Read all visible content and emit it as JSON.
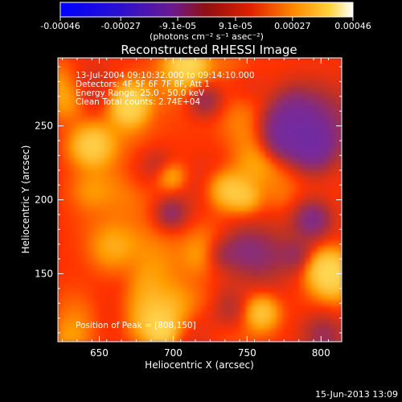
{
  "colorbar": {
    "ticks": [
      "-0.00046",
      "-0.00027",
      "-9.1e-05",
      "9.1e-05",
      "0.00027",
      "0.00046"
    ],
    "tick_values": [
      -0.00046,
      -0.00027,
      -9.1e-05,
      9.1e-05,
      0.00027,
      0.00046
    ],
    "range": [
      -0.00046,
      0.00046
    ],
    "units": "(photons cm⁻² s⁻¹ asec⁻²)"
  },
  "chart_data": {
    "type": "heatmap",
    "title": "Reconstructed RHESSI Image",
    "xlabel": "Heliocentric X (arcsec)",
    "ylabel": "Heliocentric Y (arcsec)",
    "xlim": [
      622,
      814
    ],
    "ylim": [
      104,
      296
    ],
    "xticks": [
      650,
      700,
      750,
      800
    ],
    "yticks": [
      150,
      200,
      250
    ],
    "colormap": [
      "#1a00ff",
      "#6a2ab0",
      "#b03030",
      "#ff3000",
      "#ff9a00",
      "#ffe060",
      "#ffffe0"
    ],
    "annotations": [
      "13-Jul-2004 09:10:32.000 to 09:14:10.000",
      "Detectors: 4F 5F 6F 7F 8F, Att 1",
      "Energy Range: 25.0 - 50.0 keV",
      "Clean    Total counts: 2.74E+04",
      "Position of Peak = [808,150]"
    ],
    "peak": [
      808,
      150
    ]
  },
  "footer": {
    "timestamp": "15-Jun-2013 13:09"
  }
}
